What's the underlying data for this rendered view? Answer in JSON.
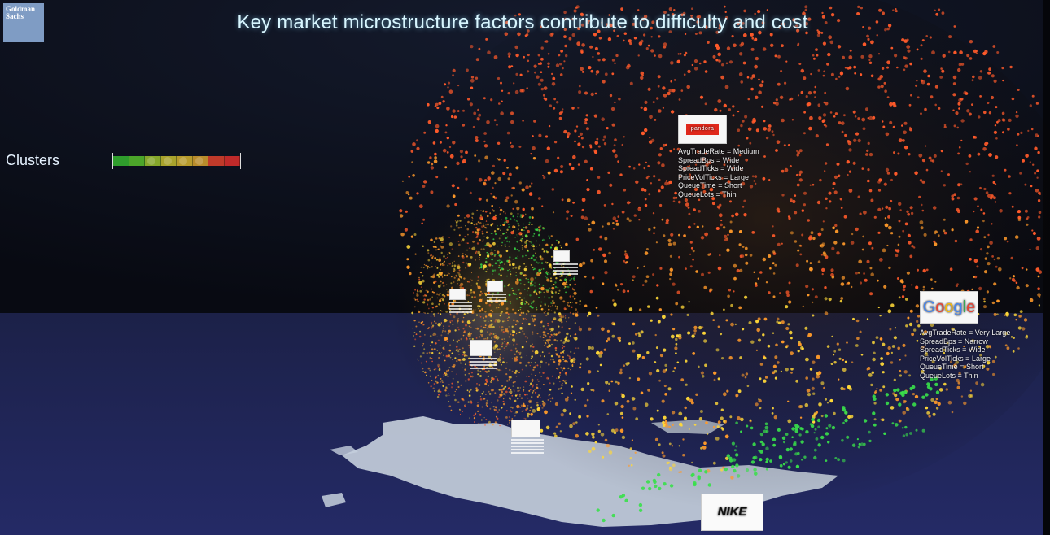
{
  "brand": {
    "logo_line1": "Goldman",
    "logo_line2": "Sachs"
  },
  "title": "Key market microstructure factors contribute to difficulty and cost",
  "clusters": {
    "label": "Clusters",
    "segments": [
      "#2f9d2c",
      "#4ca52a",
      "#86a72b",
      "#a9a32c",
      "#b79b2c",
      "#b98c2b",
      "#c03a2a",
      "#c02a2a"
    ]
  },
  "cards": {
    "pandora": {
      "logo_text": "pandora",
      "rows": [
        "AvgTradeRate = Medium",
        "SpreadBps = Wide",
        "SpreadTicks = Wide",
        "PriceVolTicks = Large",
        "QueueTime = Short",
        "QueueLots = Thin"
      ]
    },
    "google": {
      "logo_text": "Google",
      "logo_colors": [
        "#4285f4",
        "#ea4335",
        "#fbbc05",
        "#4285f4",
        "#34a853",
        "#ea4335"
      ],
      "rows": [
        "AvgTradeRate = Very Large",
        "SpreadBps = Narrow",
        "SpreadTicks = Wide",
        "PriceVolTicks = Large",
        "QueueTime = Short",
        "QueueLots = Thin"
      ]
    },
    "nike": {
      "logo_text": "NIKE"
    }
  },
  "colors": {
    "background": "#0b0d17",
    "ocean": "#1b2050",
    "land": "#c9d3e0",
    "point_red": "#ff5a2a",
    "point_orange": "#ff9a2a",
    "point_yellow": "#ffd838",
    "point_green": "#39e04a"
  },
  "icons": [
    "goldman-sachs-logo",
    "pandora-logo",
    "google-logo",
    "nike-logo"
  ]
}
